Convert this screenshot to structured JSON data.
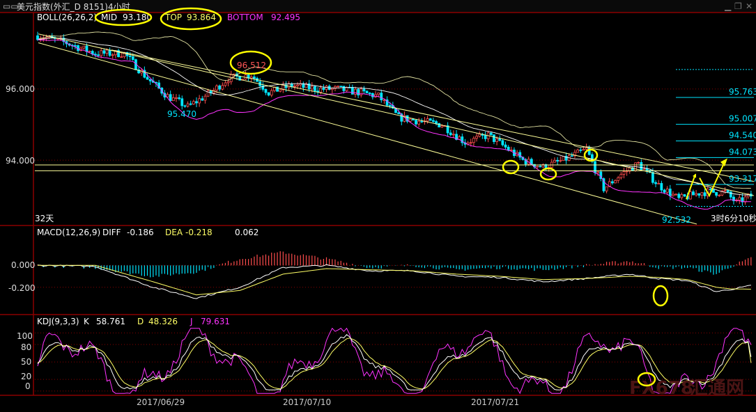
{
  "window": {
    "title": "美元指数(外汇_D 8151)4小时",
    "menu_icon": "double-dash-menu-icon",
    "controls": [
      "minimize-icon",
      "restore-icon",
      "close-icon"
    ]
  },
  "colors": {
    "background": "#000000",
    "grid": "#8b0000",
    "up_candle": "#ff4d4d",
    "down_candle": "#00e5ff",
    "boll_mid": "#ffffff",
    "boll_band": "#e0e0a0",
    "boll_lower": "#ff33ff",
    "channel": "#ffff99",
    "level": "#00e5ff",
    "macd_pos": "#ff4d4d",
    "macd_neg": "#00e5ff",
    "diff": "#ffffff",
    "dea": "#ffff66",
    "k": "#ffffff",
    "d": "#ffff66",
    "j": "#ff33ff",
    "highlight": "#ffff00",
    "watermark": "#3a0d0d"
  },
  "panels": {
    "price": {
      "legend": {
        "name": "BOLL(26,26,2)",
        "mid_label": "MID",
        "mid_value": "93.180",
        "top_label": "TOP",
        "top_value": "93.864",
        "bottom_label": "BOTTOM",
        "bottom_value": "92.495"
      },
      "y_ticks": [
        "96.000",
        "94.000"
      ],
      "annotations": {
        "peak": "96.512",
        "trough": "95.470",
        "low": "92.532"
      },
      "levels": [
        "95.763",
        "95.007",
        "94.540",
        "94.073",
        "93.317"
      ],
      "period_label": "32天",
      "countdown": "3时6分10秒"
    },
    "macd": {
      "legend": {
        "name": "MACD(12,26,9)",
        "diff_label": "DIFF",
        "diff_value": "-0.186",
        "dea_label": "DEA",
        "dea_value": "-0.218",
        "macd_value": "0.062"
      },
      "y_ticks": [
        "0.000",
        "-0.200"
      ]
    },
    "kdj": {
      "legend": {
        "name": "KDJ(9,3,3)",
        "k_label": "K",
        "k_value": "58.761",
        "d_label": "D",
        "d_value": "48.326",
        "j_label": "J",
        "j_value": "79.631"
      },
      "y_ticks": [
        "100",
        "80",
        "50",
        "20",
        "0"
      ]
    }
  },
  "x_labels": [
    "2017/06/29",
    "2017/07/10",
    "2017/07/21"
  ],
  "watermark": {
    "brand": "FX678",
    "cn": "汇通网"
  },
  "chart_data": {
    "type": "candlestick",
    "instrument": "美元指数",
    "timeframe": "4小时",
    "price_ylim": [
      92.2,
      97.8
    ],
    "close_path": [
      [
        0,
        97.5
      ],
      [
        10,
        97.3
      ],
      [
        20,
        97.0
      ],
      [
        30,
        97.0
      ],
      [
        38,
        96.3
      ],
      [
        45,
        95.8
      ],
      [
        52,
        95.5
      ],
      [
        60,
        95.9
      ],
      [
        66,
        96.3
      ],
      [
        74,
        96.4
      ],
      [
        80,
        95.9
      ],
      [
        88,
        96.1
      ],
      [
        97,
        96.0
      ],
      [
        104,
        96.0
      ],
      [
        112,
        95.9
      ],
      [
        118,
        95.8
      ],
      [
        125,
        95.2
      ],
      [
        132,
        95.1
      ],
      [
        140,
        95.0
      ],
      [
        148,
        94.5
      ],
      [
        156,
        94.7
      ],
      [
        163,
        94.3
      ],
      [
        168,
        94.0
      ],
      [
        175,
        93.8
      ],
      [
        182,
        94.0
      ],
      [
        190,
        94.3
      ],
      [
        196,
        93.2
      ],
      [
        202,
        93.6
      ],
      [
        208,
        93.9
      ],
      [
        215,
        93.3
      ],
      [
        222,
        92.9
      ],
      [
        230,
        93.1
      ],
      [
        238,
        93.1
      ],
      [
        242,
        92.8
      ],
      [
        247,
        93.0
      ]
    ],
    "levels": [
      95.763,
      95.007,
      94.54,
      94.073,
      93.317
    ],
    "horizontal_lines": [
      93.864,
      93.7
    ],
    "boll": {
      "mid": 93.18,
      "top": 93.864,
      "bottom": 92.495
    },
    "macd": {
      "ylim": [
        -0.45,
        0.25
      ],
      "diff_last": -0.186,
      "dea_last": -0.218,
      "macd_last": 0.062,
      "diff_path": [
        [
          0,
          0.0
        ],
        [
          20,
          -0.01
        ],
        [
          40,
          -0.2
        ],
        [
          55,
          -0.3
        ],
        [
          70,
          -0.2
        ],
        [
          85,
          -0.02
        ],
        [
          100,
          0.0
        ],
        [
          115,
          -0.05
        ],
        [
          130,
          -0.05
        ],
        [
          145,
          -0.1
        ],
        [
          160,
          -0.11
        ],
        [
          175,
          -0.15
        ],
        [
          190,
          -0.12
        ],
        [
          205,
          -0.08
        ],
        [
          215,
          -0.12
        ],
        [
          225,
          -0.14
        ],
        [
          235,
          -0.24
        ],
        [
          240,
          -0.22
        ],
        [
          247,
          -0.186
        ]
      ],
      "dea_path": [
        [
          0,
          0.0
        ],
        [
          20,
          0.0
        ],
        [
          40,
          -0.15
        ],
        [
          55,
          -0.27
        ],
        [
          70,
          -0.23
        ],
        [
          85,
          -0.08
        ],
        [
          100,
          -0.03
        ],
        [
          115,
          -0.04
        ],
        [
          130,
          -0.05
        ],
        [
          145,
          -0.08
        ],
        [
          160,
          -0.1
        ],
        [
          175,
          -0.13
        ],
        [
          190,
          -0.12
        ],
        [
          205,
          -0.1
        ],
        [
          215,
          -0.11
        ],
        [
          225,
          -0.13
        ],
        [
          235,
          -0.2
        ],
        [
          240,
          -0.215
        ],
        [
          247,
          -0.218
        ]
      ]
    },
    "kdj": {
      "ylim": [
        -5,
        110
      ],
      "k_last": 58.761,
      "d_last": 48.326,
      "j_last": 79.631
    }
  }
}
